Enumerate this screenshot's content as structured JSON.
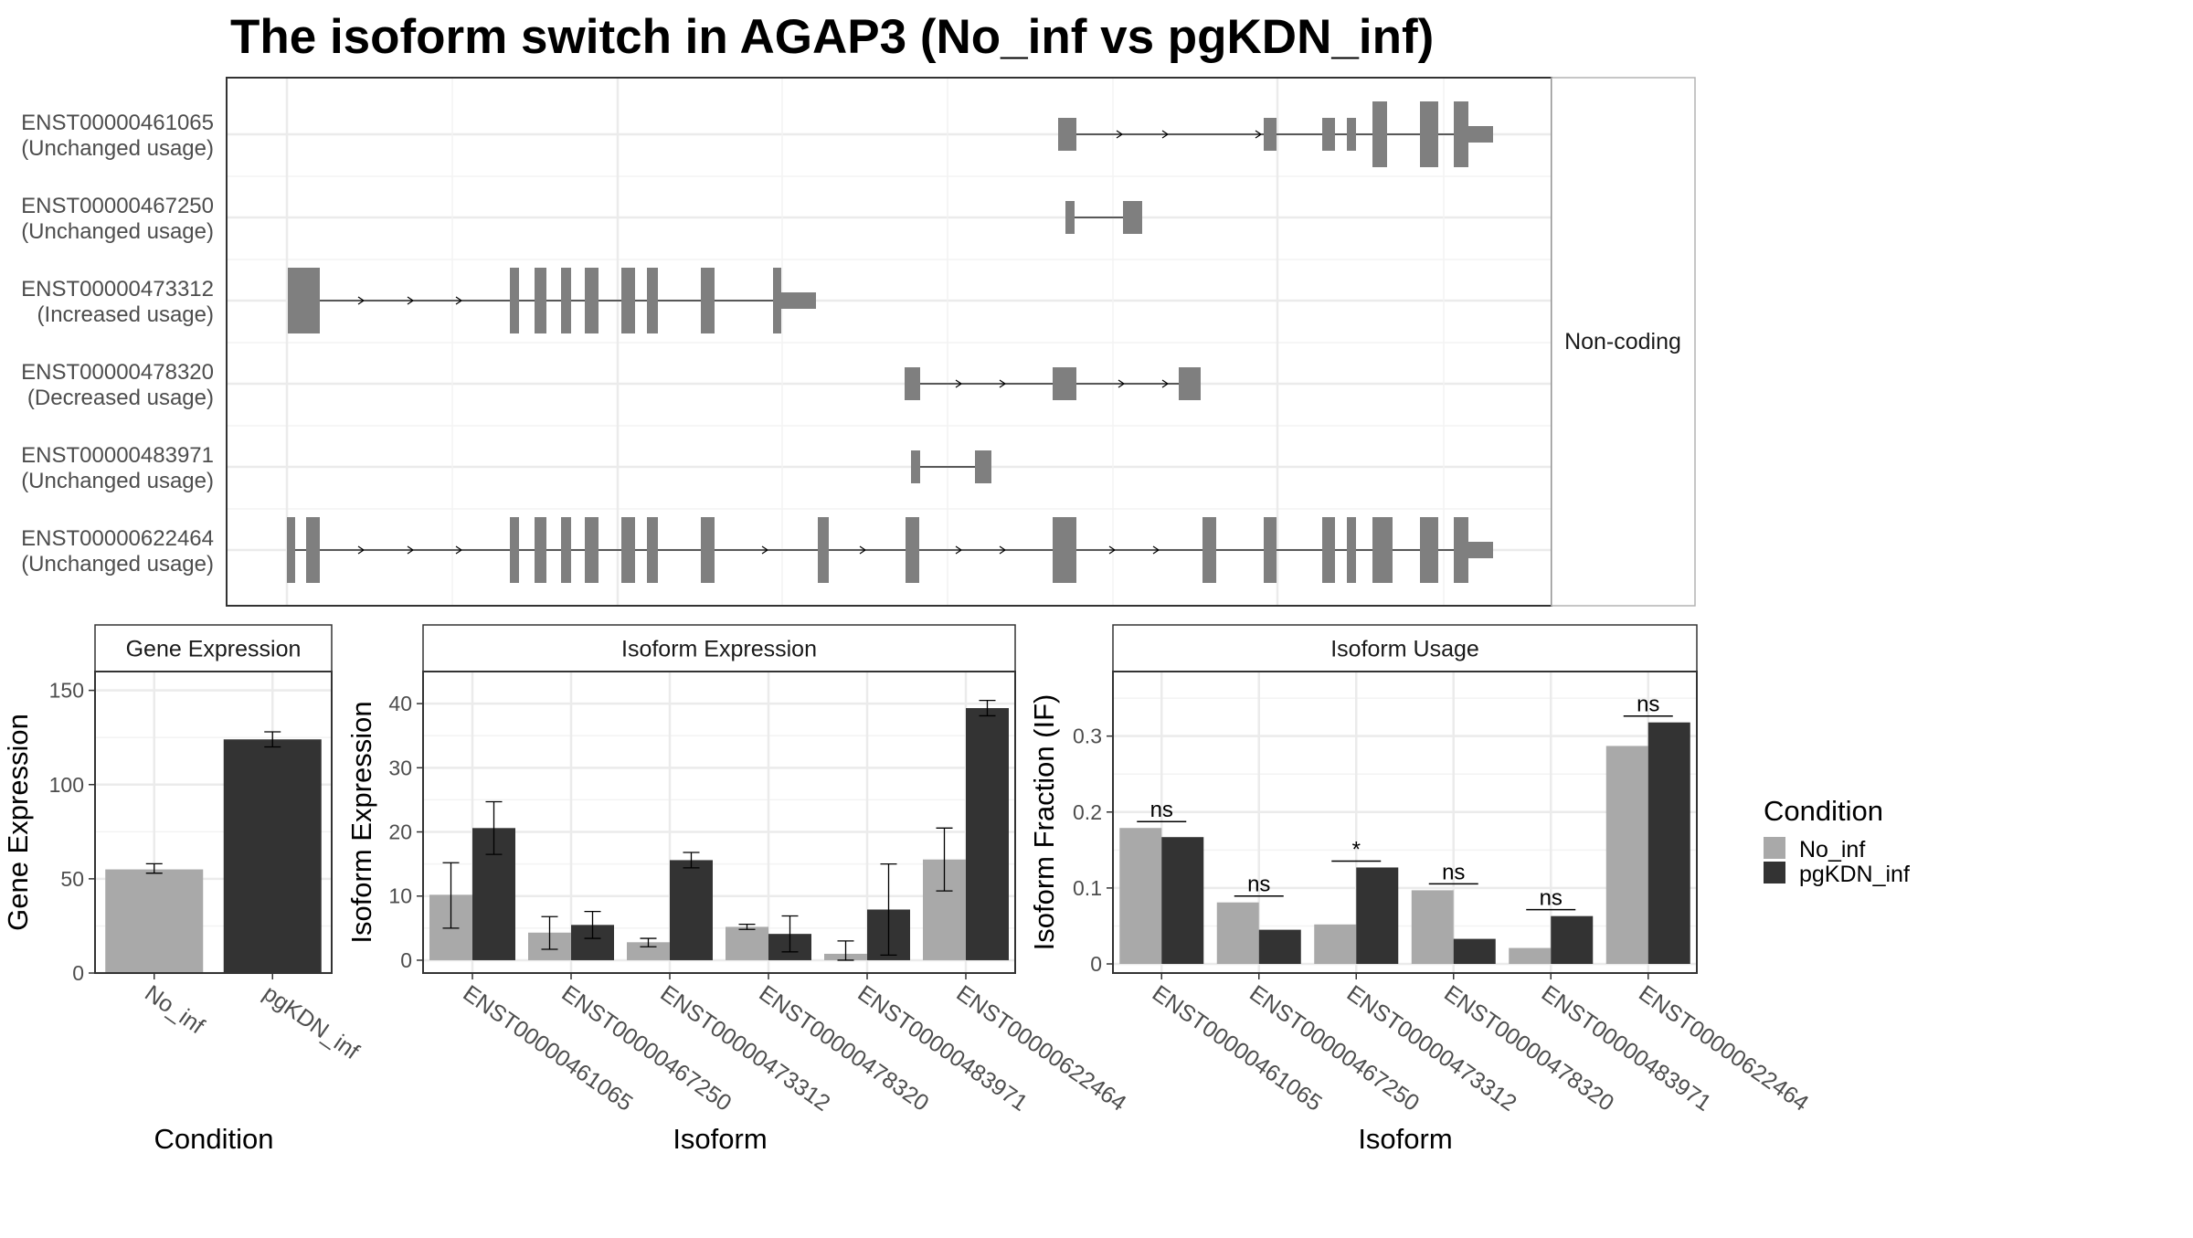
{
  "title": "The isoform switch in AGAP3 (No_inf vs pgKDN_inf)",
  "colors": {
    "No_inf": "#a9a9a9",
    "pgKDN_inf": "#333333",
    "exon": "#7f7f7f",
    "grid": "#ebebeb",
    "frame": "#333333",
    "strip": "#ffffff"
  },
  "transcript_panel": {
    "strip_label": "Non-coding",
    "transcripts": [
      {
        "id": "ENST00000461065",
        "usage": "(Unchanged usage)"
      },
      {
        "id": "ENST00000467250",
        "usage": "(Unchanged usage)"
      },
      {
        "id": "ENST00000473312",
        "usage": "(Increased usage)"
      },
      {
        "id": "ENST00000478320",
        "usage": "(Decreased usage)"
      },
      {
        "id": "ENST00000483971",
        "usage": "(Unchanged usage)"
      },
      {
        "id": "ENST00000622464",
        "usage": "(Unchanged usage)"
      }
    ]
  },
  "legend": {
    "title": "Condition",
    "items": [
      "No_inf",
      "pgKDN_inf"
    ]
  },
  "chart_data": [
    {
      "type": "bar",
      "title": "Gene Expression",
      "xlabel": "Condition",
      "ylabel": "Gene Expression",
      "categories": [
        "No_inf",
        "pgKDN_inf"
      ],
      "values": [
        55,
        124
      ],
      "errors": [
        [
          53,
          58
        ],
        [
          120,
          128
        ]
      ],
      "yticks": [
        0,
        50,
        100,
        150
      ],
      "ylim": [
        0,
        160
      ]
    },
    {
      "type": "bar",
      "title": "Isoform Expression",
      "xlabel": "Isoform",
      "ylabel": "Isoform Expression",
      "categories": [
        "ENST00000461065",
        "ENST00000467250",
        "ENST00000473312",
        "ENST00000478320",
        "ENST00000483971",
        "ENST00000622464"
      ],
      "series": [
        {
          "name": "No_inf",
          "values": [
            10.2,
            4.3,
            2.8,
            5.2,
            1.0,
            15.7
          ],
          "errors": [
            [
              5.0,
              15.2
            ],
            [
              1.7,
              6.8
            ],
            [
              2.1,
              3.4
            ],
            [
              4.8,
              5.6
            ],
            [
              0.0,
              3.0
            ],
            [
              10.8,
              20.6
            ]
          ]
        },
        {
          "name": "pgKDN_inf",
          "values": [
            20.6,
            5.5,
            15.6,
            4.1,
            7.9,
            39.3
          ],
          "errors": [
            [
              16.5,
              24.7
            ],
            [
              3.4,
              7.6
            ],
            [
              14.4,
              16.8
            ],
            [
              1.3,
              6.9
            ],
            [
              0.8,
              15.0
            ],
            [
              38.1,
              40.5
            ]
          ]
        }
      ],
      "yticks": [
        0,
        10,
        20,
        30,
        40
      ],
      "ylim": [
        -2,
        45
      ]
    },
    {
      "type": "bar",
      "title": "Isoform Usage",
      "xlabel": "Isoform",
      "ylabel": "Isoform Fraction (IF)",
      "categories": [
        "ENST00000461065",
        "ENST00000467250",
        "ENST00000473312",
        "ENST00000478320",
        "ENST00000483971",
        "ENST00000622464"
      ],
      "series": [
        {
          "name": "No_inf",
          "values": [
            0.179,
            0.081,
            0.052,
            0.097,
            0.021,
            0.287
          ]
        },
        {
          "name": "pgKDN_inf",
          "values": [
            0.167,
            0.045,
            0.127,
            0.033,
            0.063,
            0.318
          ]
        }
      ],
      "significance": [
        "ns",
        "ns",
        "*",
        "ns",
        "ns",
        "ns"
      ],
      "yticks": [
        0.0,
        0.1,
        0.2,
        0.3
      ],
      "ylim": [
        -0.012,
        0.385
      ]
    }
  ]
}
